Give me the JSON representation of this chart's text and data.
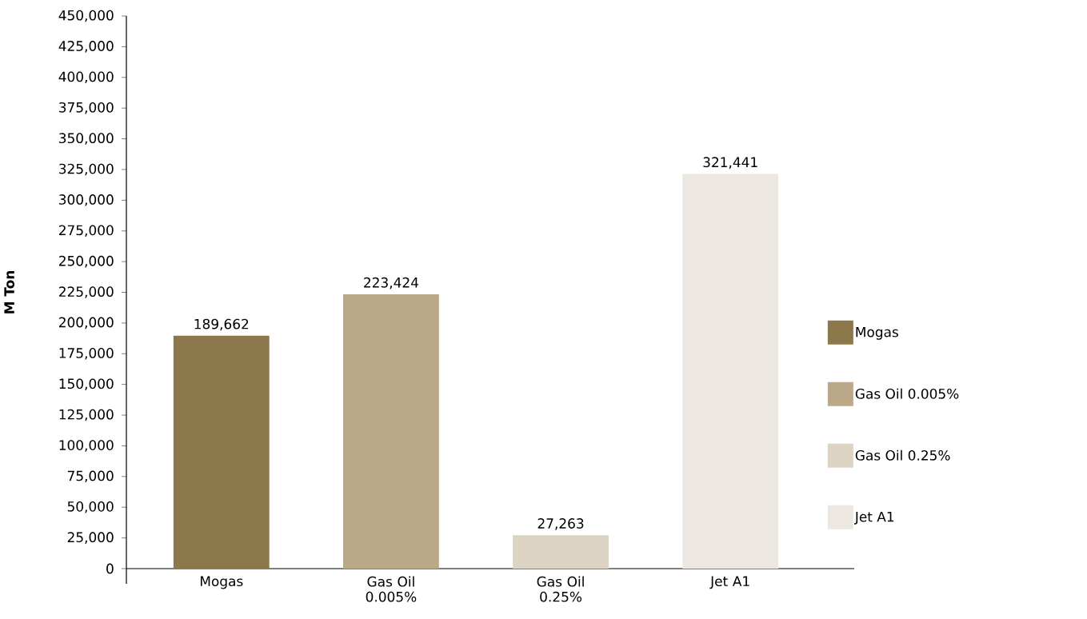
{
  "chart_data": {
    "type": "bar",
    "ylabel": "M Ton",
    "categories": [
      "Mogas",
      "Gas Oil 0.005%",
      "Gas Oil 0.25%",
      "Jet A1"
    ],
    "series": [
      {
        "name": "Mogas",
        "color": "#8c784b",
        "values": [
          189662,
          null,
          null,
          null
        ],
        "value_labels": [
          "189,662",
          null,
          null,
          null
        ]
      },
      {
        "name": "Gas Oil 0.005%",
        "color": "#bba888",
        "values": [
          null,
          223424,
          null,
          null
        ],
        "value_labels": [
          null,
          "223,424",
          null,
          null
        ]
      },
      {
        "name": "Gas Oil 0.25%",
        "color": "#dcd3c3",
        "values": [
          null,
          null,
          27263,
          null
        ],
        "value_labels": [
          null,
          null,
          "27,263",
          null
        ]
      },
      {
        "name": "Jet A1",
        "color": "#ece8e1",
        "values": [
          null,
          null,
          null,
          321441
        ],
        "value_labels": [
          null,
          null,
          null,
          "321,441"
        ]
      }
    ],
    "ylim": [
      0,
      450000
    ],
    "yticks": [
      0,
      {
        "value": 25000,
        "label": "25,000"
      },
      {
        "value": 50000,
        "label": "50,000"
      },
      {
        "value": 75000,
        "label": "75,000"
      },
      {
        "value": 100000,
        "label": "100,000"
      },
      {
        "value": 125000,
        "label": "125,000"
      },
      {
        "value": 150000,
        "label": "150,000"
      },
      {
        "value": 175000,
        "label": "175,000"
      },
      {
        "value": 200000,
        "label": "200,000"
      },
      {
        "value": 225000,
        "label": "225,000"
      },
      {
        "value": 250000,
        "label": "250,000"
      },
      {
        "value": 275000,
        "label": "275,000"
      },
      {
        "value": 300000,
        "label": "300,000"
      },
      {
        "value": 325000,
        "label": "325,000"
      },
      {
        "value": 350000,
        "label": "350,000"
      },
      {
        "value": 375000,
        "label": "375,000"
      },
      {
        "value": 400000,
        "label": "400,000"
      },
      {
        "value": 425000,
        "label": "425,000"
      },
      {
        "value": 450000,
        "label": "450,000"
      }
    ],
    "data_labels": true,
    "legend": "right"
  }
}
